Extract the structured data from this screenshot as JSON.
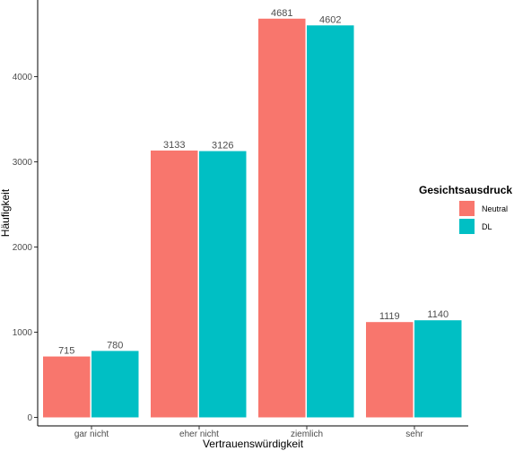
{
  "chart_data": {
    "type": "bar",
    "categories": [
      "gar nicht",
      "eher nicht",
      "ziemlich",
      "sehr"
    ],
    "series": [
      {
        "name": "Neutral",
        "values": [
          715,
          3133,
          4681,
          1119
        ],
        "color": "#F8766D"
      },
      {
        "name": "DL",
        "values": [
          780,
          3126,
          4602,
          1140
        ],
        "color": "#00BFC4"
      }
    ],
    "xlabel": "Vertrauenswürdigkeit",
    "ylabel": "Häufigkeit",
    "yticks": [
      0,
      1000,
      2000,
      3000,
      4000
    ],
    "ylim": [
      -100,
      4900
    ],
    "legend": {
      "title": "Gesichtsausdruck",
      "position": "right"
    },
    "grid": false
  }
}
